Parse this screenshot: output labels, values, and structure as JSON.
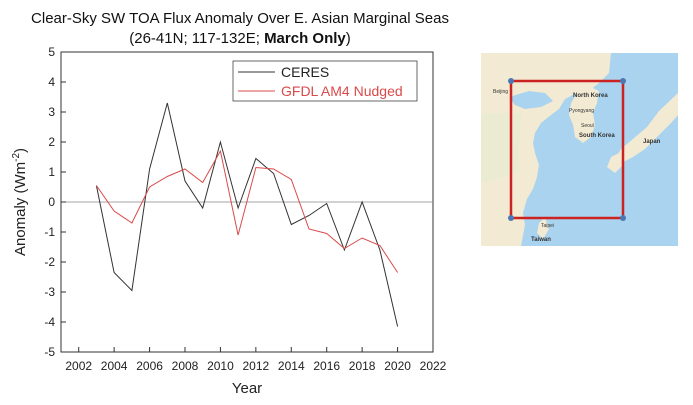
{
  "figure": {
    "title_line1": "Clear-Sky SW TOA Flux Anomaly Over E. Asian Marginal Seas",
    "title_line2_prefix": "(26-41N; 117-132E; ",
    "title_line2_bold": "March Only",
    "title_line2_suffix": ")"
  },
  "chart_data": {
    "type": "line",
    "xlabel": "Year",
    "ylabel_main": "Anomaly (Wm",
    "ylabel_sup": "-2",
    "ylabel_close": ")",
    "xlim": [
      2001,
      2022
    ],
    "ylim": [
      -5,
      5
    ],
    "xticks": [
      2002,
      2004,
      2006,
      2008,
      2010,
      2012,
      2014,
      2016,
      2018,
      2020,
      2022
    ],
    "yticks": [
      5,
      4,
      3,
      2,
      1,
      0,
      -1,
      -2,
      -3,
      -4,
      -5
    ],
    "grid": false,
    "zero_line": true,
    "legend_position": "top-right",
    "series": [
      {
        "name": "CERES",
        "color": "#333333",
        "x": [
          2003,
          2004,
          2005,
          2006,
          2007,
          2008,
          2009,
          2010,
          2011,
          2012,
          2013,
          2014,
          2015,
          2016,
          2017,
          2018,
          2019,
          2020
        ],
        "values": [
          0.55,
          -2.35,
          -2.95,
          1.1,
          3.3,
          0.7,
          -0.2,
          2.0,
          -0.2,
          1.45,
          0.95,
          -0.75,
          -0.45,
          -0.05,
          -1.6,
          0.0,
          -1.6,
          -4.15
        ]
      },
      {
        "name": "GFDL AM4 Nudged",
        "color": "#d94a4a",
        "x": [
          2003,
          2004,
          2005,
          2006,
          2007,
          2008,
          2009,
          2010,
          2011,
          2012,
          2013,
          2014,
          2015,
          2016,
          2017,
          2018,
          2019,
          2020
        ],
        "values": [
          0.55,
          -0.3,
          -0.7,
          0.5,
          0.85,
          1.1,
          0.65,
          1.7,
          -1.1,
          1.15,
          1.1,
          0.75,
          -0.9,
          -1.05,
          -1.55,
          -1.2,
          -1.45,
          -2.35
        ]
      }
    ]
  },
  "map": {
    "labels": [
      "North Korea",
      "South Korea",
      "Seoul",
      "Pyongyang",
      "Japan",
      "Beijing",
      "Taiwan",
      "Taipei"
    ],
    "box_color": "#cc2222"
  }
}
